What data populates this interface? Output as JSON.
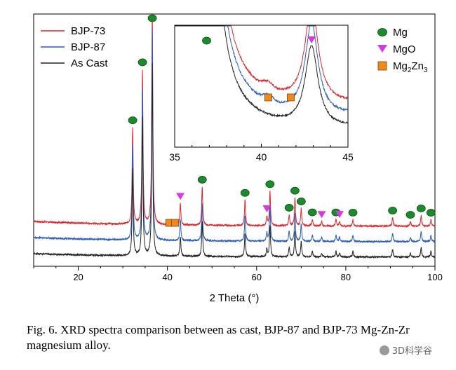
{
  "chart_data": {
    "type": "line",
    "xlabel": "2 Theta (°)",
    "ylabel": "",
    "xlim": [
      10,
      100
    ],
    "xticks": [
      20,
      40,
      60,
      80,
      100
    ],
    "series": [
      {
        "name": "BJP-73",
        "color": "#d9272e"
      },
      {
        "name": "BJP-87",
        "color": "#2a5db8"
      },
      {
        "name": "As Cast",
        "color": "#222222"
      }
    ],
    "peaks": [
      {
        "x": 32.2,
        "height": 0.45
      },
      {
        "x": 34.4,
        "height": 0.72
      },
      {
        "x": 36.6,
        "height": 1.0
      },
      {
        "x": 47.8,
        "height": 0.18
      },
      {
        "x": 57.4,
        "height": 0.12
      },
      {
        "x": 63.0,
        "height": 0.16
      },
      {
        "x": 67.3,
        "height": 0.05
      },
      {
        "x": 68.6,
        "height": 0.13
      },
      {
        "x": 70.0,
        "height": 0.08
      },
      {
        "x": 72.5,
        "height": 0.03
      },
      {
        "x": 77.8,
        "height": 0.03
      },
      {
        "x": 81.6,
        "height": 0.03
      },
      {
        "x": 90.5,
        "height": 0.04
      },
      {
        "x": 94.5,
        "height": 0.02
      },
      {
        "x": 96.9,
        "height": 0.05
      },
      {
        "x": 99.1,
        "height": 0.03
      }
    ],
    "mgo_peaks": [
      {
        "x": 42.9,
        "height": 0.1
      },
      {
        "x": 62.3,
        "height": 0.04
      },
      {
        "x": 74.6,
        "height": 0.02
      },
      {
        "x": 78.6,
        "height": 0.02
      }
    ],
    "markers": {
      "Mg": [
        32.2,
        34.4,
        36.6,
        47.8,
        57.4,
        63.0,
        67.3,
        68.6,
        70.0,
        72.5,
        77.8,
        81.6,
        90.5,
        94.5,
        96.9,
        99.1
      ],
      "MgO": [
        42.9,
        62.3,
        74.6,
        78.6
      ],
      "Mg2Zn3": [
        40.4,
        41.7
      ]
    },
    "legend_series_position": "top-left",
    "legend_phase_position": "top-right",
    "inset": {
      "xlim": [
        35,
        45
      ],
      "xticks": [
        35,
        40,
        45
      ],
      "markers": {
        "Mg": [
          36.6
        ],
        "MgO": [
          42.9
        ],
        "Mg2Zn3": [
          40.4,
          41.7
        ]
      }
    }
  },
  "legend_phase": {
    "mg": "Mg",
    "mgo": "MgO",
    "mg2zn3_base": "Mg",
    "mg2zn3_sub1": "2",
    "mg2zn3_mid": "Zn",
    "mg2zn3_sub2": "3"
  },
  "colors": {
    "mg": "#1e8a2e",
    "mgo": "#d43be0",
    "mg2zn3": "#f08a1c"
  },
  "caption": "Fig. 6. XRD spectra comparison between as cast, BJP-87 and BJP-73 Mg-Zn-Zr magnesium alloy.",
  "watermark": "3D科学谷"
}
